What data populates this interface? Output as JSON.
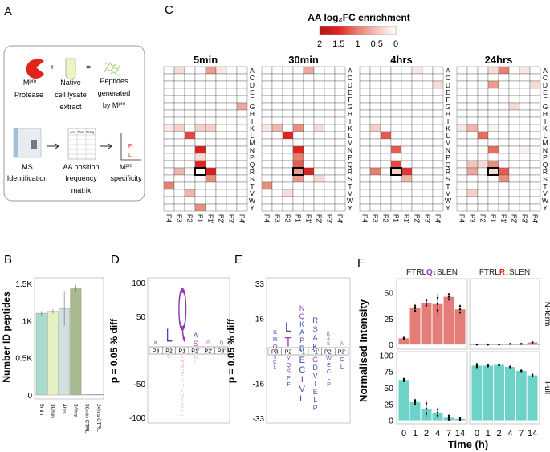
{
  "panel_labels": [
    "A",
    "B",
    "C",
    "D",
    "E",
    "F"
  ],
  "panel_a": {
    "protease": {
      "base": "M",
      "sup": "pro",
      "line2": "Protease"
    },
    "plus": "+",
    "equals": "=",
    "lysate": [
      "Native",
      "cell lysate",
      "extract"
    ],
    "peptides": [
      "Peptides",
      "generated",
      "by M",
      "pro"
    ],
    "ms": [
      "MS",
      "Identification"
    ],
    "matrix": [
      "AA position",
      "frequency",
      "matrix"
    ],
    "matrix_headers": [
      "AA",
      "Pos",
      "Freq"
    ],
    "specificity": {
      "base": "M",
      "sup": "pro",
      "line2": "specificity"
    },
    "spec_letters": [
      "F",
      "L"
    ],
    "colors": {
      "protease": "#e0231c",
      "tube": "#eef3c2",
      "peptides": "#9bc96a",
      "spec": "#e0231c"
    }
  },
  "chart_data": [
    {
      "panel": "C",
      "type": "heatmap",
      "legend": {
        "title": "AA log₂FC enrichment",
        "ticks": [
          "2",
          "1.5",
          "1",
          "0.5",
          "0"
        ],
        "range": [
          0,
          2
        ],
        "colors": [
          "#ffffff",
          "#f2c4ba",
          "#e8806e",
          "#e32222",
          "#b01818"
        ]
      },
      "rows": [
        "A",
        "C",
        "D",
        "E",
        "F",
        "G",
        "H",
        "I",
        "K",
        "L",
        "M",
        "N",
        "P",
        "Q",
        "R",
        "S",
        "T",
        "V",
        "W",
        "Y"
      ],
      "columns": [
        "P4",
        "P3",
        "P2",
        "P1",
        "P1'",
        "P2'",
        "P3'",
        "P4'"
      ],
      "highlight": {
        "row": "R",
        "column": "P1"
      },
      "panels": [
        {
          "title": "5min",
          "cells": [
            [
              "A",
              "P3",
              0.3
            ],
            [
              "A",
              "P1'",
              0.8
            ],
            [
              "A",
              "P2'",
              0.2
            ],
            [
              "G",
              "P4'",
              0.7
            ],
            [
              "K",
              "P4",
              0.2
            ],
            [
              "K",
              "P3",
              0.4
            ],
            [
              "K",
              "P1",
              0.4
            ],
            [
              "K",
              "P1'",
              0.4
            ],
            [
              "L",
              "P2",
              1.3
            ],
            [
              "N",
              "P1",
              1.6
            ],
            [
              "P",
              "P1",
              0.3
            ],
            [
              "Q",
              "P1",
              1.5
            ],
            [
              "R",
              "P3",
              0.6
            ],
            [
              "R",
              "P1'",
              1.6
            ],
            [
              "S",
              "P1'",
              0.9
            ],
            [
              "T",
              "P4",
              1.0
            ],
            [
              "V",
              "P2",
              0.6
            ],
            [
              "Y",
              "P1",
              0.9
            ]
          ]
        },
        {
          "title": "30min",
          "cells": [
            [
              "A",
              "P1'",
              0.7
            ],
            [
              "K",
              "P4",
              0.2
            ],
            [
              "K",
              "P3",
              0.6
            ],
            [
              "K",
              "P1",
              0.9
            ],
            [
              "K",
              "P2'",
              0.3
            ],
            [
              "L",
              "P2",
              1.5
            ],
            [
              "N",
              "P1",
              1.5
            ],
            [
              "P",
              "P1",
              1.0
            ],
            [
              "Q",
              "P1",
              1.2
            ],
            [
              "R",
              "P1",
              0.8
            ],
            [
              "R",
              "P1'",
              1.6
            ],
            [
              "S",
              "P1",
              0.8
            ],
            [
              "S",
              "P2'",
              0.3
            ],
            [
              "T",
              "P4",
              0.9
            ],
            [
              "V",
              "P2",
              0.3
            ]
          ]
        },
        {
          "title": "4hrs",
          "cells": [
            [
              "A",
              "P2'",
              0.2
            ],
            [
              "D",
              "P4'",
              0.3
            ],
            [
              "K",
              "P3",
              0.4
            ],
            [
              "L",
              "P2",
              1.2
            ],
            [
              "N",
              "P1",
              1.2
            ],
            [
              "Q",
              "P1",
              1.3
            ],
            [
              "R",
              "P3",
              1.0
            ],
            [
              "R",
              "P1",
              0.4
            ],
            [
              "R",
              "P1'",
              1.4
            ],
            [
              "S",
              "P1'",
              0.6
            ]
          ]
        },
        {
          "title": "24hrs",
          "cells": [
            [
              "A",
              "P1",
              0.3
            ],
            [
              "A",
              "P1'",
              1.0
            ],
            [
              "A",
              "P3'",
              0.2
            ],
            [
              "D",
              "P1",
              0.8
            ],
            [
              "D",
              "P4'",
              0.3
            ],
            [
              "G",
              "P2'",
              0.3
            ],
            [
              "K",
              "P4",
              0.2
            ],
            [
              "K",
              "P3",
              0.6
            ],
            [
              "K",
              "P1",
              0.1
            ],
            [
              "L",
              "P2",
              1.1
            ],
            [
              "N",
              "P1",
              1.1
            ],
            [
              "N",
              "P3'",
              0.1
            ],
            [
              "Q",
              "P3",
              0.5
            ],
            [
              "Q",
              "P2",
              0.3
            ],
            [
              "Q",
              "P1",
              0.9
            ],
            [
              "R",
              "P3",
              0.7
            ],
            [
              "R",
              "P1",
              0.3
            ],
            [
              "R",
              "P1'",
              1.2
            ],
            [
              "S",
              "P1'",
              0.9
            ],
            [
              "V",
              "P3",
              0.4
            ]
          ]
        }
      ]
    },
    {
      "panel": "B",
      "type": "bar",
      "ylabel": "Number ID peptides",
      "yticks": [
        "0",
        "0.5K",
        "1K",
        "1.5K"
      ],
      "ylim": [
        0,
        1550
      ],
      "categories": [
        "5min",
        "30min",
        "4hrs",
        "24hrs",
        "30min CTRL",
        "24hrs CTRL"
      ],
      "values": [
        1100,
        1125,
        1160,
        1430,
        5,
        8
      ],
      "errors": [
        30,
        30,
        230,
        50,
        0,
        0
      ],
      "colors": [
        "#a9dccf",
        "#e4f1c3",
        "#d0e1dd",
        "#a9b98f",
        "#cccccc",
        "#cccccc"
      ]
    },
    {
      "panel": "D",
      "type": "sequence-logo",
      "ylabel": "p = 0.05 % diff",
      "yticks": [
        100,
        50,
        -50,
        -100
      ],
      "ylim": [
        -100,
        100
      ],
      "positions": [
        "P3",
        "P2",
        "P1",
        "P1'",
        "P2'",
        "P3'"
      ],
      "enriched": [
        {
          "pos": "P3",
          "letters": "K",
          "height": 6
        },
        {
          "pos": "P2",
          "letters": "L",
          "height": 28
        },
        {
          "pos": "P1",
          "letters": "Q",
          "height": 90
        },
        {
          "pos": "P1'",
          "letters": "AS",
          "height": 22
        },
        {
          "pos": "P2'",
          "letters": "G",
          "height": 3
        },
        {
          "pos": "P3'",
          "letters": "Q",
          "height": 4
        }
      ],
      "depleted": [
        {
          "pos": "P2",
          "letters": "G",
          "height": 4
        },
        {
          "pos": "P1",
          "letters": "LWMDFKHIGKSEL",
          "height": 70
        },
        {
          "pos": "P1'",
          "letters": "NL",
          "height": 15
        }
      ]
    },
    {
      "panel": "E",
      "type": "sequence-logo",
      "ylabel": "p = 0.05 % diff",
      "yticks": [
        33,
        16,
        -16,
        -33
      ],
      "ylim": [
        -33,
        33
      ],
      "positions": [
        "P3",
        "P2",
        "P1",
        "P1'",
        "P2'",
        "P3'"
      ],
      "enriched": [
        {
          "pos": "P3",
          "letters": "KRQ",
          "height": 9
        },
        {
          "pos": "P2",
          "letters": "LT",
          "height": 13
        },
        {
          "pos": "P1",
          "letters": "NQKAPR",
          "height": 21
        },
        {
          "pos": "P1'",
          "letters": "RSAK",
          "height": 15
        },
        {
          "pos": "P2'",
          "letters": "KAS",
          "height": 6
        },
        {
          "pos": "P3'",
          "letters": "A",
          "height": 2
        }
      ],
      "depleted": [
        {
          "pos": "P3",
          "letters": "SCL",
          "height": 7
        },
        {
          "pos": "P2",
          "letters": "YQSPF",
          "height": 14
        },
        {
          "pos": "P1",
          "letters": "ECIVL",
          "height": 22
        },
        {
          "pos": "P1'",
          "letters": "GDVIELP",
          "height": 24
        },
        {
          "pos": "P2'",
          "letters": "WECLP",
          "height": 14
        },
        {
          "pos": "P3'",
          "letters": "CL",
          "height": 6
        }
      ]
    },
    {
      "panel": "F",
      "type": "bar",
      "ylabel": "Normalised Intensity",
      "xlabel": "Time (h)",
      "categories": [
        "0",
        "1",
        "2",
        "4",
        "7",
        "14"
      ],
      "columns": [
        {
          "parts": [
            "FTRL",
            "Q",
            "↓",
            "SLEN"
          ],
          "colors": [
            "#222222",
            "#8e3bb0",
            "#e0231c",
            "#222222"
          ]
        },
        {
          "parts": [
            "FTRL",
            "R",
            "↓",
            "SLEN"
          ],
          "colors": [
            "#222222",
            "#e0231c",
            "#e0231c",
            "#222222"
          ]
        }
      ],
      "rows": [
        {
          "label": "N-term",
          "yticks": [
            0,
            25,
            50
          ],
          "ylim": [
            -3,
            62
          ],
          "color": "#e47c78",
          "series": [
            [
              6,
              35,
              40,
              39,
              46,
              34
            ],
            [
              0,
              0,
              0,
              0.5,
              0.5,
              2
            ]
          ],
          "errors": [
            [
              1,
              4,
              4,
              10,
              4,
              5
            ],
            [
              0,
              0,
              0,
              0,
              0,
              0.5
            ]
          ]
        },
        {
          "label": "Full",
          "yticks": [
            0,
            25,
            50,
            75,
            100
          ],
          "ylim": [
            -3,
            103
          ],
          "color": "#6dd3c9",
          "series": [
            [
              62,
              28,
              18,
              12,
              4,
              2
            ],
            [
              84,
              84,
              85,
              82,
              76,
              69
            ]
          ],
          "errors": [
            [
              3,
              5,
              13,
              8,
              5,
              2
            ],
            [
              4,
              2,
              1,
              1,
              1,
              2
            ]
          ]
        }
      ]
    }
  ]
}
